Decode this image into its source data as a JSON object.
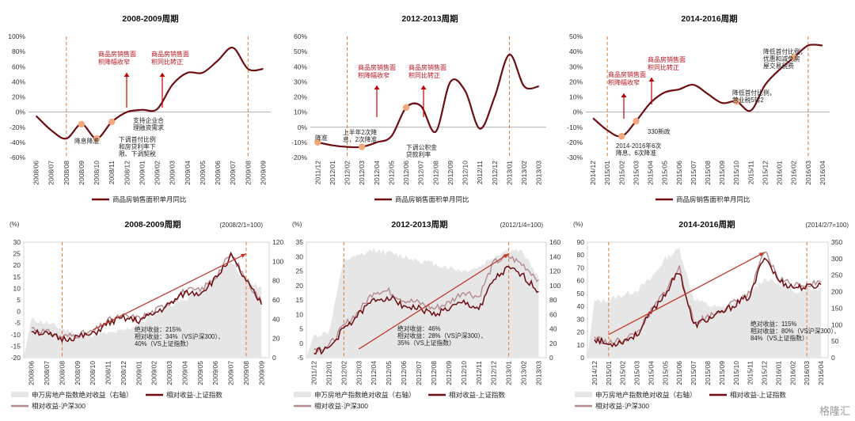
{
  "colors": {
    "line": "#6e0d12",
    "dash": "#e0782c",
    "marker": "#f2a77c",
    "red": "#c00000",
    "abs": "#e6e6e6",
    "hs300": "#b48a8f",
    "trend": "#c0392b"
  },
  "watermark": "格隆汇",
  "chart_data": [
    {
      "type": "line",
      "title": "2008-2009周期",
      "x": [
        "2008/06",
        "2008/07",
        "2008/08",
        "2008/09",
        "2008/10",
        "2008/11",
        "2008/12",
        "2009/01",
        "2009/02",
        "2009/03",
        "2009/04",
        "2009/05",
        "2009/06",
        "2009/07",
        "2009/08",
        "2009/09"
      ],
      "y_ticks": [
        "100%",
        "80%",
        "60%",
        "40%",
        "20%",
        "0%",
        "-20%",
        "-40%",
        "-60%"
      ],
      "ylim": [
        -60,
        100
      ],
      "series": [
        {
          "name": "商品房销售面积单月同比",
          "values": [
            -5,
            -24,
            -35,
            -16,
            -35,
            -13,
            0,
            3,
            4,
            36,
            52,
            52,
            68,
            85,
            57,
            57
          ]
        }
      ],
      "annotations": [
        "降息降准",
        "下调首付比例和房贷利率下限、下调契税",
        "支持企业合理融资需求",
        "商品房销售面积降幅收窄",
        "商品房销售面积同比转正"
      ],
      "legend": "商品房销售面积单月同比"
    },
    {
      "type": "line",
      "title": "2012-2013周期",
      "x": [
        "2011/12",
        "2012/01",
        "2012/02",
        "2012/03",
        "2012/04",
        "2012/05",
        "2012/06",
        "2012/07",
        "2012/08",
        "2012/09",
        "2012/10",
        "2012/11",
        "2012/12",
        "2013/01",
        "2013/02",
        "2013/03"
      ],
      "y_ticks": [
        "60%",
        "50%",
        "40%",
        "30%",
        "20%",
        "10%",
        "0%",
        "-10%",
        "-20%"
      ],
      "ylim": [
        -20,
        60
      ],
      "series": [
        {
          "name": "商品房销售面积单月同比",
          "values": [
            -10,
            -12,
            -13,
            -13,
            -10,
            -6,
            13,
            14,
            -3,
            30,
            24,
            -1,
            20,
            48,
            27,
            27
          ]
        }
      ],
      "annotations": [
        "降准",
        "上半年2次降息，2次降准",
        "下调公积金贷款利率",
        "商品房销售面积降幅收窄",
        "商品房销售面积同比转正"
      ],
      "legend": "商品房销售面积单月同比"
    },
    {
      "type": "line",
      "title": "2014-2016周期",
      "x": [
        "2014/12",
        "2015/01",
        "2015/02",
        "2015/03",
        "2015/04",
        "2015/05",
        "2015/06",
        "2015/07",
        "2015/08",
        "2015/09",
        "2015/10",
        "2015/11",
        "2015/12",
        "2016/01",
        "2016/02",
        "2016/03",
        "2016/04"
      ],
      "y_ticks": [
        "50%",
        "40%",
        "30%",
        "20%",
        "10%",
        "0%",
        "-10%",
        "-20%",
        "-30%"
      ],
      "ylim": [
        -30,
        50
      ],
      "series": [
        {
          "name": "商品房销售面积单月同比",
          "values": [
            -4,
            -12,
            -16,
            -6,
            6,
            13,
            15,
            18,
            12,
            6,
            7,
            1,
            18,
            28,
            36,
            44,
            44
          ]
        }
      ],
      "annotations": [
        "2014-2016年6次降息、6次降准",
        "330新政",
        "降低首付比例，营业税5转2",
        "降低首付比例，优惠和减免房屋交易税费",
        "商品房销售面积降幅收窄",
        "商品房销售面积同比转正"
      ],
      "legend": "商品房销售面积单月同比"
    },
    {
      "type": "line",
      "title": "2008-2009周期",
      "base_note": "(2008/2/1=100)",
      "unit": "(%)",
      "x": [
        "2008/06",
        "2008/07",
        "2008/08",
        "2008/09",
        "2008/10",
        "2008/11",
        "2008/12",
        "2009/01",
        "2009/02",
        "2009/03",
        "2009/04",
        "2009/05",
        "2009/06",
        "2009/07",
        "2009/08",
        "2009/09"
      ],
      "left_ticks": [
        "30",
        "25",
        "20",
        "15",
        "10",
        "5",
        "0",
        "-5",
        "-10",
        "-15",
        "-20"
      ],
      "right_ticks": [
        "120",
        "100",
        "80",
        "60",
        "40",
        "20",
        "0"
      ],
      "ylim_left": [
        -20,
        30
      ],
      "ylim_right": [
        0,
        120
      ],
      "series": [
        {
          "name": "申万房地产指数绝对收益（右轴）",
          "values": [
            40,
            36,
            30,
            26,
            24,
            25,
            28,
            35,
            45,
            55,
            60,
            70,
            85,
            100,
            80,
            72
          ]
        },
        {
          "name": "相对收益-上证指数",
          "values": [
            -8,
            -10,
            -12,
            -11,
            -10,
            -5,
            -3,
            -4,
            -1,
            3,
            8,
            8,
            14,
            24,
            13,
            3
          ]
        },
        {
          "name": "相对收益-沪深300",
          "values": [
            -7,
            -9,
            -11,
            -10,
            -9,
            -4,
            -2,
            -3,
            0,
            4,
            9,
            9,
            15,
            25,
            14,
            4
          ]
        }
      ],
      "annotations": [
        "绝对收益：215%",
        "相对收益：34%（VS沪深300）、40%（VS上证指数）"
      ]
    },
    {
      "type": "line",
      "title": "2012-2013周期",
      "base_note": "(2012/1/4=100)",
      "unit": "(%)",
      "x": [
        "2011/12",
        "2012/01",
        "2012/02",
        "2012/03",
        "2012/04",
        "2012/05",
        "2012/06",
        "2012/07",
        "2012/08",
        "2012/09",
        "2012/10",
        "2012/11",
        "2012/12",
        "2013/01",
        "2013/02",
        "2013/03"
      ],
      "left_ticks": [
        "35",
        "30",
        "25",
        "20",
        "15",
        "10",
        "5",
        "0",
        "-5"
      ],
      "right_ticks": [
        "160",
        "140",
        "120",
        "100",
        "80",
        "60",
        "40",
        "20",
        "0"
      ],
      "ylim_left": [
        -5,
        35
      ],
      "ylim_right": [
        0,
        160
      ],
      "series": [
        {
          "name": "申万房地产指数绝对收益（右轴）",
          "values": [
            30,
            35,
            135,
            140,
            150,
            145,
            140,
            135,
            130,
            125,
            120,
            125,
            140,
            150,
            145,
            110
          ]
        },
        {
          "name": "相对收益-上证指数",
          "values": [
            -3,
            -2,
            5,
            10,
            15,
            16,
            13,
            12,
            10,
            12,
            14,
            12,
            22,
            26,
            23,
            18
          ]
        },
        {
          "name": "相对收益-沪深300",
          "values": [
            -2,
            -1,
            6,
            11,
            18,
            18,
            15,
            14,
            12,
            14,
            18,
            16,
            28,
            30,
            27,
            22
          ]
        }
      ],
      "annotations": [
        "绝对收益：46%",
        "相对收益：28%（VS沪深300）、35%（VS上证指数）"
      ]
    },
    {
      "type": "line",
      "title": "2014-2016周期",
      "base_note": "(2014/2/7=100)",
      "unit": "(%)",
      "x": [
        "2014/12",
        "2015/01",
        "2015/02",
        "2015/03",
        "2015/04",
        "2015/05",
        "2015/06",
        "2015/07",
        "2015/08",
        "2015/09",
        "2015/10",
        "2015/11",
        "2015/12",
        "2016/01",
        "2016/02",
        "2016/03",
        "2016/04"
      ],
      "left_ticks": [
        "90",
        "80",
        "70",
        "60",
        "50",
        "40",
        "30",
        "20",
        "10",
        "0"
      ],
      "right_ticks": [
        "350",
        "300",
        "250",
        "200",
        "150",
        "100",
        "50",
        "0"
      ],
      "ylim_left": [
        0,
        90
      ],
      "ylim_right": [
        0,
        350
      ],
      "series": [
        {
          "name": "申万房地产指数绝对收益（右轴）",
          "values": [
            170,
            175,
            190,
            205,
            240,
            300,
            330,
            180,
            160,
            150,
            170,
            200,
            240,
            225,
            200,
            210,
            210
          ]
        },
        {
          "name": "相对收益-上证指数",
          "values": [
            15,
            10,
            13,
            18,
            35,
            50,
            68,
            25,
            30,
            35,
            42,
            48,
            80,
            60,
            55,
            55,
            57
          ]
        },
        {
          "name": "相对收益-沪深300",
          "values": [
            16,
            11,
            14,
            19,
            36,
            52,
            70,
            27,
            32,
            37,
            44,
            50,
            83,
            62,
            57,
            57,
            59
          ]
        }
      ],
      "annotations": [
        "绝对收益：115%",
        "相对收益：80%（VS沪深300）、84%（VS上证指数）"
      ]
    }
  ],
  "legends": {
    "top": "商品房销售面积单月同比",
    "bottom": [
      "申万房地产指数绝对收益（右轴）",
      "相对收益-上证指数",
      "相对收益-沪深300"
    ]
  }
}
